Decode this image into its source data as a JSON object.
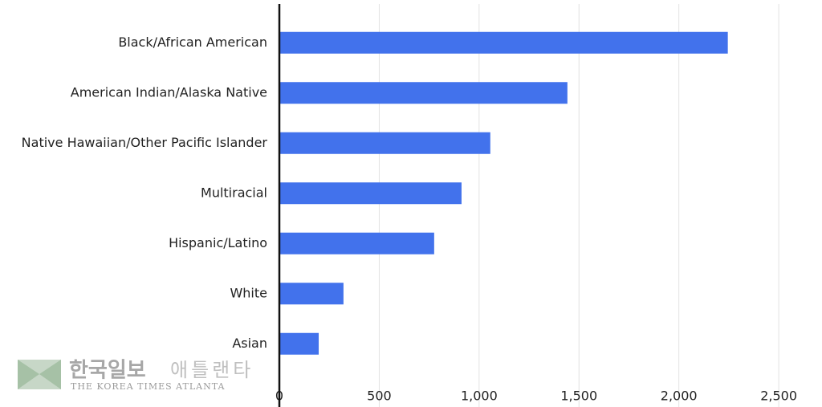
{
  "chart_data": {
    "type": "barh",
    "categories": [
      "Black/African American",
      "American Indian/Alaska Native",
      "Native Hawaiian/Other Pacific Islander",
      "Multiracial",
      "Hispanic/Latino",
      "White",
      "Asian"
    ],
    "values": [
      2245,
      1442,
      1056,
      912,
      775,
      321,
      197
    ],
    "color": "#4272ec",
    "xlim": [
      0,
      2600
    ],
    "xticks": [
      0,
      500,
      {
        "value": 1000,
        "label": "1,000"
      },
      {
        "value": 1500,
        "label": "1,500"
      },
      {
        "value": 2000,
        "label": "2,000"
      },
      {
        "value": 2500,
        "label": "2,500"
      }
    ],
    "grid": true
  },
  "watermark": {
    "title": "한국일보",
    "subtitle": "애틀랜타",
    "caption": "THE KOREA TIMES ATLANTA"
  }
}
